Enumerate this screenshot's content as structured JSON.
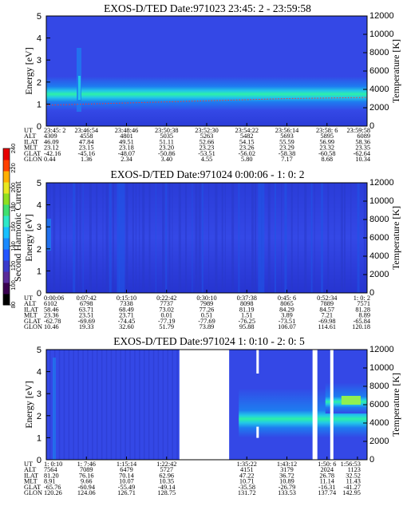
{
  "colorbar": {
    "label": "Second Harmonic Current",
    "ticks": [
      "80",
      "100",
      "120",
      "140",
      "160",
      "180",
      "200",
      "220",
      "240"
    ],
    "colors": [
      "#000000",
      "#3a0050",
      "#5a2a9a",
      "#3a3acc",
      "#2255ff",
      "#1a8aff",
      "#18c0ff",
      "#2ee8c8",
      "#40e070",
      "#90e020",
      "#e8e820",
      "#ffb000",
      "#ff4000",
      "#e80000"
    ]
  },
  "palette": {
    "bg": "#3448e6",
    "bg_dark": "#2230c4",
    "band1": "#1e7cf0",
    "band2": "#22c8e8",
    "band3": "#2ef0a8",
    "band4": "#90f050",
    "red": "#ff3030",
    "gap": "#ffffff"
  },
  "chart_data": [
    {
      "type": "heatmap",
      "title": "EXOS-D/TED   Date:971023  23:45: 2 - 23:59:58",
      "ylabel": "Energy [eV]",
      "ylabel2": "Temperature [K]",
      "ylim": [
        0,
        5
      ],
      "ylim2": [
        0,
        12000
      ],
      "y_ticks": [
        "0",
        "1",
        "2",
        "3",
        "4",
        "5"
      ],
      "y2_ticks": [
        "0",
        "2000",
        "4000",
        "6000",
        "8000",
        "10000",
        "12000"
      ],
      "band_center_ev": 2.0,
      "temperature_series": [
        {
          "t": 0.0,
          "y": 0.95
        },
        {
          "t": 0.25,
          "y": 1.05
        },
        {
          "t": 0.5,
          "y": 1.15
        },
        {
          "t": 0.75,
          "y": 1.25
        },
        {
          "t": 1.0,
          "y": 1.3
        }
      ],
      "table": {
        "labels": [
          "UT",
          "ALT",
          "ILAT",
          "MLT",
          "GLAT",
          "GLON"
        ],
        "columns": [
          {
            "x": 0.0,
            "v": [
              "23:45: 2",
              "4309",
              "46.09",
              "23.12",
              "-42.16",
              "0.44"
            ]
          },
          {
            "x": 0.154,
            "v": [
              "23:46:54",
              "4558",
              "47.84",
              "23.15",
              "-45.16",
              "1.36"
            ]
          },
          {
            "x": 0.308,
            "v": [
              "23:48:46",
              "4801",
              "49.51",
              "23.18",
              "-48.07",
              "2.34"
            ]
          },
          {
            "x": 0.462,
            "v": [
              "23:50:38",
              "5035",
              "51.11",
              "23.20",
              "-50.86",
              "3.40"
            ]
          },
          {
            "x": 0.615,
            "v": [
              "23:52:30",
              "5263",
              "52.66",
              "23.23",
              "-53.51",
              "4.55"
            ]
          },
          {
            "x": 0.769,
            "v": [
              "23:54:22",
              "5482",
              "54.15",
              "23.26",
              "-56.02",
              "5.80"
            ]
          },
          {
            "x": 0.923,
            "v": [
              "23:56:14",
              "5693",
              "55.59",
              "23.29",
              "-58.38",
              "7.17"
            ]
          },
          {
            "x": 1.077,
            "v": [
              "23:58: 6",
              "5895",
              "56.99",
              "23.32",
              "-60.58",
              "8.68"
            ]
          },
          {
            "x": 1.231,
            "v": [
              "23:59:58",
              "6089",
              "58.36",
              "23.35",
              "-62.64",
              "10.34"
            ]
          }
        ]
      }
    },
    {
      "type": "heatmap",
      "title": "EXOS-D/TED   Date:971024  0:00:06 - 1: 0: 2",
      "ylabel": "Energy [eV]",
      "ylabel2": "Temperature [K]",
      "ylim": [
        0,
        5
      ],
      "ylim2": [
        0,
        12000
      ],
      "y_ticks": [
        "0",
        "1",
        "2",
        "3",
        "4",
        "5"
      ],
      "y2_ticks": [
        "0",
        "2000",
        "4000",
        "6000",
        "8000",
        "10000",
        "12000"
      ],
      "table": {
        "labels": [
          "UT",
          "ALT",
          "ILAT",
          "MLT",
          "GLAT",
          "GLON"
        ],
        "columns": [
          {
            "x": 0.0,
            "v": [
              "0:00:06",
              "6102",
              "58.46",
              "23.36",
              "-62.78",
              "10.46"
            ]
          },
          {
            "x": 0.125,
            "v": [
              "0:07:42",
              "6798",
              "63.71",
              "23.51",
              "-69.69",
              "19.33"
            ]
          },
          {
            "x": 0.25,
            "v": [
              "0:15:10",
              "7338",
              "68.49",
              "23.71",
              "-74.45",
              "32.60"
            ]
          },
          {
            "x": 0.375,
            "v": [
              "0:22:42",
              "7737",
              "73.02",
              "0.01",
              "-77.19",
              "51.79"
            ]
          },
          {
            "x": 0.5,
            "v": [
              "0:30:10",
              "7989",
              "77.26",
              "0.51",
              "-77.69",
              "73.89"
            ]
          },
          {
            "x": 0.625,
            "v": [
              "0:37:38",
              "8098",
              "81.19",
              "1.51",
              "-76.25",
              "95.88"
            ]
          },
          {
            "x": 0.75,
            "v": [
              "0:45: 6",
              "8065",
              "84.29",
              "3.89",
              "-73.51",
              "106.07"
            ]
          },
          {
            "x": 0.875,
            "v": [
              "0:52:34",
              "7889",
              "84.57",
              "7.21",
              "-69.98",
              "114.61"
            ]
          },
          {
            "x": 1.0,
            "v": [
              "1: 0: 2",
              "7571",
              "81.28",
              "8.89",
              "-65.84",
              "120.18"
            ]
          }
        ]
      }
    },
    {
      "type": "heatmap",
      "title": "EXOS-D/TED   Date:971024  1: 0:10 - 2: 0: 5",
      "ylabel": "Energy [eV]",
      "ylabel2": "Temperature [K]",
      "ylim": [
        0,
        5
      ],
      "ylim2": [
        0,
        12000
      ],
      "y_ticks": [
        "0",
        "1",
        "2",
        "3",
        "4",
        "5"
      ],
      "y2_ticks": [
        "0",
        "2000",
        "4000",
        "6000",
        "8000",
        "10000",
        "12000"
      ],
      "gaps": [
        [
          0.415,
          0.57
        ],
        [
          0.83,
          0.845
        ],
        [
          0.885,
          0.895
        ]
      ],
      "table": {
        "labels": [
          "UT",
          "ALT",
          "ILAT",
          "MLT",
          "GLAT",
          "GLON"
        ],
        "columns": [
          {
            "x": 0.0,
            "v": [
              "1: 0:10",
              "7564",
              "81.20",
              "8.91",
              "-65.76",
              "120.26"
            ]
          },
          {
            "x": 0.125,
            "v": [
              "1: 7:46",
              "7089",
              "76.16",
              "9.66",
              "-60.94",
              "124.06"
            ]
          },
          {
            "x": 0.25,
            "v": [
              "1:15:14",
              "6479",
              "70.14",
              "10.07",
              "-55.49",
              "126.71"
            ]
          },
          {
            "x": 0.375,
            "v": [
              "1:22:42",
              "5727",
              "62.96",
              "10.35",
              "-49.14",
              "128.75"
            ]
          },
          {
            "x": 0.625,
            "v": [
              "1:35:22",
              "4151",
              "47.22",
              "10.71",
              "-35.58",
              "131.72"
            ]
          },
          {
            "x": 0.75,
            "v": [
              "1:43:12",
              "3179",
              "36.72",
              "10.89",
              "-26.79",
              "133.53"
            ]
          },
          {
            "x": 0.875,
            "v": [
              "1:50: 6",
              "2024",
              "26.78",
              "11.14",
              "-16.31",
              "137.74"
            ]
          },
          {
            "x": 0.97,
            "v": [
              "1:56:53",
              "1123",
              "32.52",
              "11.43",
              "-41.27",
              "142.95"
            ]
          }
        ]
      }
    }
  ]
}
